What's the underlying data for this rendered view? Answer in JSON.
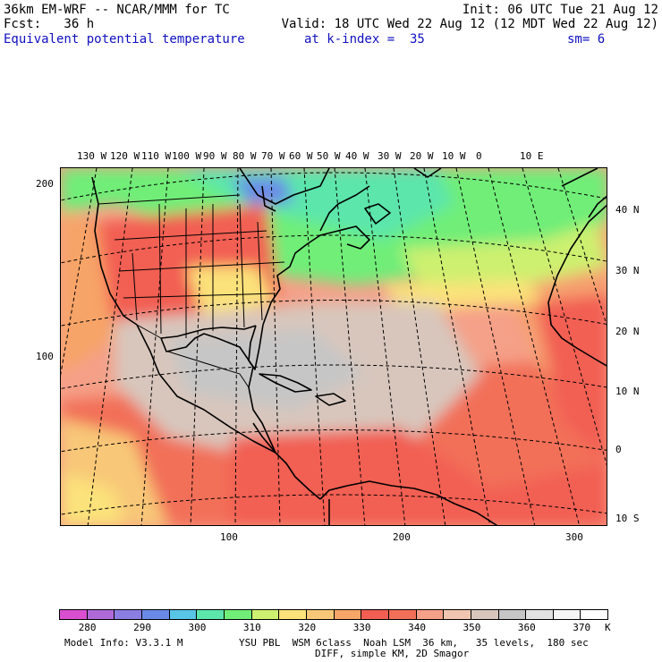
{
  "header": {
    "model": "36km EM-WRF -- NCAR/MMM for TC",
    "init": "Init: 06 UTC Tue 21 Aug 12",
    "fcst": "Fcst:   36 h",
    "valid": "Valid: 18 UTC Wed 22 Aug 12 (12 MDT Wed 22 Aug 12)",
    "field": "Equivalent potential temperature",
    "level": "at k-index =  35",
    "smooth": "sm= 6"
  },
  "map": {
    "lon_labels": [
      "130 W",
      "120 W",
      "110 W",
      "100 W",
      "90 W",
      "80 W",
      "70 W",
      "60 W",
      "50 W",
      "40 W",
      "30 W",
      "20 W",
      "10 W",
      "0",
      "10 E"
    ],
    "lat_labels": [
      "40 N",
      "30 N",
      "20 N",
      "10 N",
      "0",
      "10 S"
    ],
    "y_grid_labels": [
      "200",
      "100"
    ],
    "x_grid_labels": [
      "100",
      "200",
      "300"
    ]
  },
  "colorbar": {
    "colors": [
      "#d94fd0",
      "#b06ad8",
      "#8a7ee2",
      "#6a8ae8",
      "#58c4e6",
      "#5ce6ac",
      "#70ee78",
      "#cdf070",
      "#fbe27a",
      "#f8c878",
      "#f7a468",
      "#f25e52",
      "#f27058",
      "#f5a088",
      "#f0c6b0",
      "#d8c6bc",
      "#c6c6c6",
      "#e2e2e2",
      "#f6f6f6",
      "#ffffff"
    ],
    "labels": [
      "280",
      "290",
      "300",
      "310",
      "320",
      "330",
      "340",
      "350",
      "360",
      "370"
    ],
    "unit": "K"
  },
  "footer": {
    "info": "Model Info: V3.3.1 M",
    "physics": "YSU PBL  WSM 6class  Noah LSM  36 km,   35 levels,  180 sec",
    "diff": "DIFF, simple KM, 2D Smagor"
  }
}
